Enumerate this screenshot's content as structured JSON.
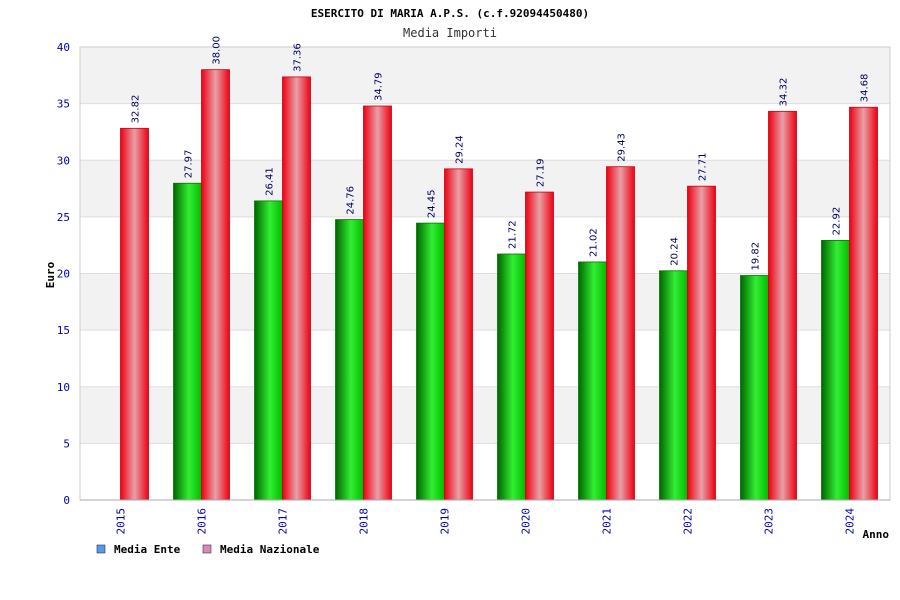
{
  "chart_data": {
    "type": "bar",
    "title": "ESERCITO DI MARIA A.P.S. (c.f.92094450480)",
    "subtitle": "Media Importi",
    "xlabel": "Anno",
    "ylabel": "Euro",
    "ylim": [
      0,
      40
    ],
    "yticks": [
      0,
      5,
      10,
      15,
      20,
      25,
      30,
      35,
      40
    ],
    "categories": [
      "2015",
      "2016",
      "2017",
      "2018",
      "2019",
      "2020",
      "2021",
      "2022",
      "2023",
      "2024"
    ],
    "series": [
      {
        "name": "Media Ente",
        "values": [
          null,
          27.97,
          26.41,
          24.76,
          24.45,
          21.72,
          21.02,
          20.24,
          19.82,
          22.92
        ],
        "labels": [
          "",
          "27.97",
          "26.41",
          "24.76",
          "24.45",
          "21.72",
          "21.02",
          "20.24",
          "19.82",
          "22.92"
        ],
        "color": "#00aa00",
        "legend_color": "#5599ee"
      },
      {
        "name": "Media Nazionale",
        "values": [
          32.82,
          38.0,
          37.36,
          34.79,
          29.24,
          27.19,
          29.43,
          27.71,
          34.32,
          34.68
        ],
        "labels": [
          "32.82",
          "38.00",
          "37.36",
          "34.79",
          "29.24",
          "27.19",
          "29.43",
          "27.71",
          "34.32",
          "34.68"
        ],
        "color": "#ee0022",
        "legend_color": "#dd88bb"
      }
    ],
    "grid": true,
    "legend": "bottom-left"
  }
}
